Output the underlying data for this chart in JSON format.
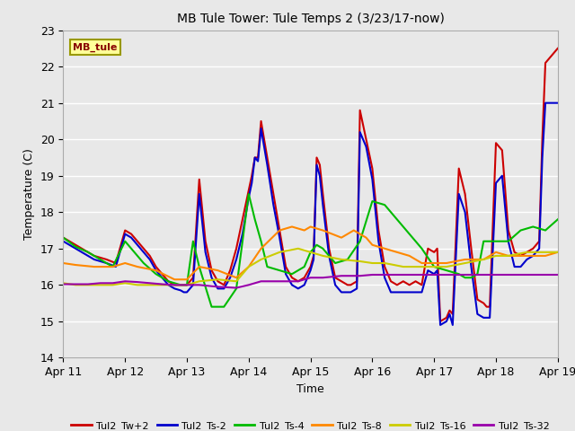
{
  "title": "MB Tule Tower: Tule Temps 2 (3/23/17-now)",
  "xlabel": "Time",
  "ylabel": "Temperature (C)",
  "xlim_days": [
    0,
    8
  ],
  "ylim": [
    14.0,
    23.0
  ],
  "yticks": [
    14.0,
    15.0,
    16.0,
    17.0,
    18.0,
    19.0,
    20.0,
    21.0,
    22.0,
    23.0
  ],
  "xtick_labels": [
    "Apr 11",
    "Apr 12",
    "Apr 13",
    "Apr 14",
    "Apr 15",
    "Apr 16",
    "Apr 17",
    "Apr 18",
    "Apr 19"
  ],
  "xtick_positions": [
    0,
    1,
    2,
    3,
    4,
    5,
    6,
    7,
    8
  ],
  "bg_color": "#e8e8e8",
  "plot_bg_color": "#e8e8e8",
  "grid_color": "#ffffff",
  "legend_label": "MB_tule",
  "legend_bg": "#ffff99",
  "legend_border": "#999900",
  "series": [
    {
      "label": "Tul2_Tw+2",
      "color": "#cc0000",
      "lw": 1.5,
      "x": [
        0.0,
        0.1,
        0.2,
        0.3,
        0.5,
        0.7,
        0.85,
        1.0,
        1.05,
        1.1,
        1.2,
        1.3,
        1.4,
        1.5,
        1.6,
        1.7,
        1.8,
        1.9,
        1.95,
        2.0,
        2.05,
        2.1,
        2.2,
        2.3,
        2.4,
        2.5,
        2.6,
        2.7,
        2.8,
        2.9,
        3.0,
        3.05,
        3.1,
        3.15,
        3.2,
        3.3,
        3.4,
        3.5,
        3.6,
        3.7,
        3.8,
        3.9,
        4.0,
        4.05,
        4.1,
        4.15,
        4.2,
        4.3,
        4.4,
        4.5,
        4.6,
        4.65,
        4.7,
        4.75,
        4.8,
        4.9,
        5.0,
        5.1,
        5.2,
        5.3,
        5.4,
        5.5,
        5.6,
        5.7,
        5.8,
        5.9,
        6.0,
        6.05,
        6.1,
        6.2,
        6.25,
        6.3,
        6.4,
        6.5,
        6.6,
        6.7,
        6.8,
        6.85,
        6.9,
        7.0,
        7.1,
        7.2,
        7.3,
        7.4,
        7.5,
        7.6,
        7.7,
        7.75,
        7.8,
        7.85,
        7.9,
        8.0
      ],
      "y": [
        17.3,
        17.2,
        17.1,
        17.0,
        16.8,
        16.7,
        16.6,
        17.5,
        17.45,
        17.4,
        17.2,
        17.0,
        16.8,
        16.5,
        16.3,
        16.1,
        16.0,
        16.0,
        16.0,
        16.0,
        16.1,
        16.2,
        18.9,
        17.2,
        16.4,
        16.1,
        16.0,
        16.4,
        17.0,
        17.8,
        18.6,
        19.0,
        19.5,
        19.5,
        20.5,
        19.5,
        18.5,
        17.5,
        16.5,
        16.2,
        16.1,
        16.2,
        16.5,
        16.8,
        19.5,
        19.3,
        18.5,
        17.0,
        16.2,
        16.1,
        16.0,
        16.0,
        16.05,
        16.1,
        20.8,
        20.0,
        19.2,
        17.5,
        16.5,
        16.1,
        16.0,
        16.1,
        16.0,
        16.1,
        16.0,
        17.0,
        16.9,
        17.0,
        15.0,
        15.1,
        15.3,
        15.2,
        19.2,
        18.5,
        17.0,
        15.6,
        15.5,
        15.4,
        15.4,
        19.9,
        19.7,
        17.5,
        16.9,
        16.8,
        16.9,
        17.0,
        17.2,
        20.0,
        22.1,
        22.2,
        22.3,
        22.5
      ]
    },
    {
      "label": "Tul2_Ts-2",
      "color": "#0000cc",
      "lw": 1.5,
      "x": [
        0.0,
        0.1,
        0.2,
        0.3,
        0.5,
        0.7,
        0.85,
        1.0,
        1.05,
        1.1,
        1.2,
        1.3,
        1.4,
        1.5,
        1.6,
        1.7,
        1.8,
        1.9,
        1.95,
        2.0,
        2.05,
        2.1,
        2.2,
        2.3,
        2.4,
        2.5,
        2.6,
        2.7,
        2.8,
        2.9,
        3.0,
        3.05,
        3.1,
        3.15,
        3.2,
        3.3,
        3.4,
        3.5,
        3.6,
        3.7,
        3.8,
        3.9,
        4.0,
        4.05,
        4.1,
        4.15,
        4.2,
        4.3,
        4.4,
        4.5,
        4.6,
        4.65,
        4.7,
        4.75,
        4.8,
        4.9,
        5.0,
        5.1,
        5.2,
        5.3,
        5.4,
        5.5,
        5.6,
        5.7,
        5.8,
        5.9,
        6.0,
        6.05,
        6.1,
        6.2,
        6.25,
        6.3,
        6.4,
        6.5,
        6.6,
        6.7,
        6.8,
        6.85,
        6.9,
        7.0,
        7.1,
        7.2,
        7.3,
        7.4,
        7.5,
        7.6,
        7.7,
        7.75,
        7.8,
        7.85,
        7.9,
        8.0
      ],
      "y": [
        17.2,
        17.1,
        17.0,
        16.9,
        16.7,
        16.6,
        16.5,
        17.4,
        17.35,
        17.3,
        17.1,
        16.9,
        16.7,
        16.4,
        16.2,
        16.0,
        15.9,
        15.85,
        15.8,
        15.8,
        15.9,
        16.0,
        18.5,
        16.9,
        16.2,
        15.9,
        15.9,
        16.2,
        16.7,
        17.4,
        18.4,
        18.8,
        19.5,
        19.4,
        20.3,
        19.3,
        18.2,
        17.3,
        16.3,
        16.0,
        15.9,
        16.0,
        16.4,
        16.7,
        19.3,
        19.0,
        18.2,
        16.8,
        16.0,
        15.8,
        15.8,
        15.8,
        15.85,
        15.9,
        20.2,
        19.8,
        18.9,
        17.2,
        16.2,
        15.8,
        15.8,
        15.8,
        15.8,
        15.8,
        15.8,
        16.4,
        16.3,
        16.4,
        14.9,
        15.0,
        15.2,
        14.9,
        18.5,
        18.0,
        16.5,
        15.2,
        15.1,
        15.1,
        15.1,
        18.8,
        19.0,
        17.2,
        16.5,
        16.5,
        16.7,
        16.8,
        17.0,
        19.5,
        21.0,
        21.0,
        21.0,
        21.0
      ]
    },
    {
      "label": "Tul2_Ts-4",
      "color": "#00bb00",
      "lw": 1.5,
      "x": [
        0.0,
        0.2,
        0.4,
        0.6,
        0.8,
        1.0,
        1.15,
        1.3,
        1.5,
        1.7,
        1.9,
        2.0,
        2.1,
        2.2,
        2.4,
        2.6,
        2.8,
        3.0,
        3.1,
        3.2,
        3.3,
        3.5,
        3.7,
        3.9,
        4.0,
        4.1,
        4.2,
        4.3,
        4.4,
        4.6,
        4.8,
        5.0,
        5.2,
        5.3,
        5.4,
        5.5,
        5.6,
        5.7,
        5.8,
        6.0,
        6.2,
        6.4,
        6.5,
        6.6,
        6.7,
        6.8,
        7.0,
        7.2,
        7.4,
        7.6,
        7.8,
        8.0
      ],
      "y": [
        17.3,
        17.05,
        16.9,
        16.7,
        16.5,
        17.2,
        16.9,
        16.6,
        16.3,
        16.1,
        16.0,
        16.0,
        17.2,
        16.5,
        15.4,
        15.4,
        15.9,
        18.5,
        17.8,
        17.2,
        16.5,
        16.4,
        16.3,
        16.5,
        16.9,
        17.1,
        17.0,
        16.8,
        16.6,
        16.7,
        17.2,
        18.3,
        18.2,
        18.0,
        17.8,
        17.6,
        17.4,
        17.2,
        17.0,
        16.5,
        16.4,
        16.3,
        16.2,
        16.2,
        16.3,
        17.2,
        17.2,
        17.2,
        17.5,
        17.6,
        17.5,
        17.8
      ]
    },
    {
      "label": "Tul2_Ts-8",
      "color": "#ff8800",
      "lw": 1.5,
      "x": [
        0.0,
        0.2,
        0.5,
        0.8,
        1.0,
        1.2,
        1.5,
        1.8,
        2.0,
        2.2,
        2.5,
        2.8,
        3.0,
        3.2,
        3.5,
        3.7,
        3.9,
        4.0,
        4.2,
        4.5,
        4.7,
        4.9,
        5.0,
        5.2,
        5.4,
        5.6,
        5.8,
        6.0,
        6.2,
        6.5,
        6.8,
        7.0,
        7.2,
        7.5,
        7.8,
        8.0
      ],
      "y": [
        16.6,
        16.55,
        16.5,
        16.5,
        16.6,
        16.5,
        16.4,
        16.15,
        16.15,
        16.5,
        16.4,
        16.2,
        16.5,
        17.0,
        17.5,
        17.6,
        17.5,
        17.6,
        17.5,
        17.3,
        17.5,
        17.3,
        17.1,
        17.0,
        16.9,
        16.8,
        16.6,
        16.6,
        16.6,
        16.7,
        16.7,
        16.9,
        16.8,
        16.8,
        16.8,
        16.9
      ]
    },
    {
      "label": "Tul2_Ts-16",
      "color": "#cccc00",
      "lw": 1.5,
      "x": [
        0.0,
        0.2,
        0.5,
        0.8,
        1.0,
        1.2,
        1.5,
        1.8,
        2.0,
        2.2,
        2.5,
        2.8,
        3.0,
        3.2,
        3.5,
        3.8,
        4.0,
        4.2,
        4.5,
        4.8,
        5.0,
        5.2,
        5.5,
        5.8,
        6.0,
        6.2,
        6.5,
        6.8,
        7.0,
        7.2,
        7.5,
        7.8,
        8.0
      ],
      "y": [
        16.05,
        16.0,
        16.0,
        16.0,
        16.05,
        16.0,
        16.0,
        16.0,
        16.0,
        16.1,
        16.15,
        16.1,
        16.5,
        16.7,
        16.9,
        17.0,
        16.9,
        16.8,
        16.7,
        16.65,
        16.6,
        16.6,
        16.5,
        16.5,
        16.5,
        16.5,
        16.6,
        16.7,
        16.8,
        16.8,
        16.9,
        16.9,
        16.9
      ]
    },
    {
      "label": "Tul2_Ts-32",
      "color": "#9900aa",
      "lw": 1.5,
      "x": [
        0.0,
        0.2,
        0.4,
        0.6,
        0.8,
        1.0,
        1.2,
        1.4,
        1.6,
        1.8,
        2.0,
        2.2,
        2.5,
        2.8,
        3.0,
        3.2,
        3.5,
        3.8,
        4.0,
        4.2,
        4.5,
        4.8,
        5.0,
        5.2,
        5.5,
        5.8,
        6.0,
        6.2,
        6.5,
        6.8,
        7.0,
        7.2,
        7.5,
        7.8,
        8.0
      ],
      "y": [
        16.02,
        16.02,
        16.02,
        16.05,
        16.05,
        16.1,
        16.08,
        16.05,
        16.02,
        16.0,
        16.0,
        16.0,
        15.95,
        15.92,
        16.0,
        16.1,
        16.1,
        16.1,
        16.2,
        16.2,
        16.25,
        16.25,
        16.28,
        16.28,
        16.28,
        16.28,
        16.28,
        16.28,
        16.28,
        16.28,
        16.28,
        16.28,
        16.28,
        16.28,
        16.28
      ]
    }
  ]
}
